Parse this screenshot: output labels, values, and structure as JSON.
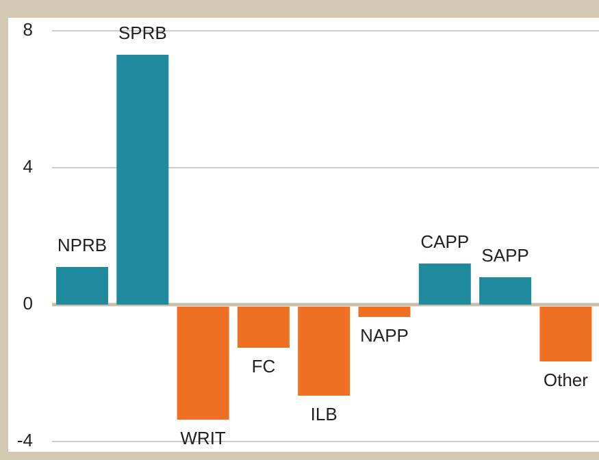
{
  "chart_data": {
    "type": "bar",
    "categories": [
      "NPRB",
      "SPRB",
      "WRIT",
      "FC",
      "ILB",
      "NAPP",
      "CAPP",
      "SAPP",
      "Other"
    ],
    "values": [
      1.1,
      7.3,
      -3.3,
      -1.2,
      -2.6,
      -0.3,
      1.2,
      0.8,
      -1.6
    ],
    "colors": [
      "#1f8a9e",
      "#1f8a9e",
      "#f07023",
      "#f07023",
      "#f07023",
      "#f07023",
      "#1f8a9e",
      "#1f8a9e",
      "#f07023"
    ],
    "ylim": [
      -4.2,
      8.3
    ],
    "yticks": [
      -4,
      0,
      4,
      8
    ],
    "grid": true
  }
}
